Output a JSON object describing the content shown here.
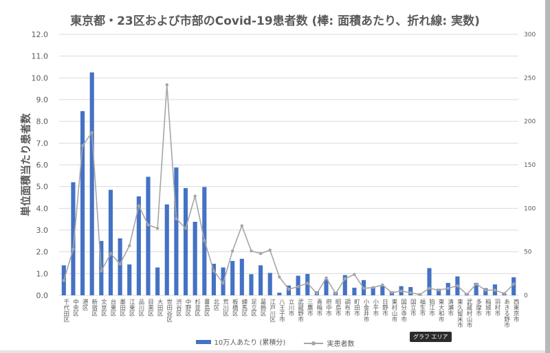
{
  "chart_data": {
    "type": "bar",
    "title": "東京都・23区および市部のCovid-19患者数 (棒: 面積あたり、折れ線: 実数)",
    "ylabel": "単位面積当たり患者数",
    "ylim": [
      0,
      12
    ],
    "y_ticks": [
      "0.0",
      "1.0",
      "2.0",
      "3.0",
      "4.0",
      "5.0",
      "6.0",
      "7.0",
      "8.0",
      "9.0",
      "10.0",
      "11.0",
      "12.0"
    ],
    "y2lim": [
      0,
      300
    ],
    "y2_ticks": [
      "0",
      "50",
      "100",
      "150",
      "200",
      "250",
      "300"
    ],
    "grid": true,
    "legend_position": "bottom",
    "categories": [
      "千代田区",
      "中央区",
      "港区",
      "新宿区",
      "文京区",
      "台東区",
      "墨田区",
      "江東区",
      "品川区",
      "目黒区",
      "大田区",
      "世田谷区",
      "渋谷区",
      "中野区",
      "杉並区",
      "豊島区",
      "北区",
      "荒川区",
      "板橋区",
      "練馬区",
      "足立区",
      "葛飾区",
      "江戸川区",
      "八王子市",
      "立川市",
      "武蔵野市",
      "三鷹市",
      "青梅市",
      "府中市",
      "昭島市",
      "調布市",
      "町田市",
      "小金井市",
      "小平市",
      "日野市",
      "東村山市",
      "国分寺市",
      "国立市",
      "福生市",
      "狛江市",
      "東大和市",
      "清瀬市",
      "東久留米市",
      "武蔵村山市",
      "多摩市",
      "稲城市",
      "羽村市",
      "あきる野市",
      "西東京市"
    ],
    "series": [
      {
        "name": "10万人あたり (累積分)",
        "type": "bar",
        "axis": "left",
        "color": "#4472c4",
        "values": [
          1.38,
          5.2,
          8.47,
          10.25,
          2.5,
          4.85,
          2.62,
          1.42,
          4.55,
          5.45,
          1.28,
          4.18,
          5.88,
          4.93,
          3.38,
          4.98,
          1.45,
          1.28,
          1.58,
          1.68,
          0.97,
          1.38,
          1.03,
          0.12,
          0.45,
          0.9,
          0.98,
          0.18,
          0.73,
          0.15,
          0.93,
          0.35,
          0.7,
          0.38,
          0.42,
          0.18,
          0.42,
          0.38,
          0.03,
          1.25,
          0.3,
          0.57,
          0.87,
          0.07,
          0.57,
          0.33,
          0.5,
          0.08,
          0.83
        ]
      },
      {
        "name": "実患者数",
        "type": "line",
        "axis": "right",
        "color": "#a5a5a5",
        "values": [
          17,
          53,
          172,
          187,
          28,
          48,
          36,
          57,
          103,
          81,
          77,
          242,
          88,
          77,
          114,
          63,
          28,
          14,
          51,
          80,
          51,
          48,
          52,
          21,
          7,
          10,
          14,
          2,
          20,
          2,
          19,
          24,
          8,
          9,
          12,
          3,
          5,
          3,
          1,
          8,
          6,
          8,
          11,
          1,
          13,
          6,
          6,
          2,
          13
        ]
      }
    ]
  },
  "ui": {
    "tooltip": "グラフ エリア"
  }
}
